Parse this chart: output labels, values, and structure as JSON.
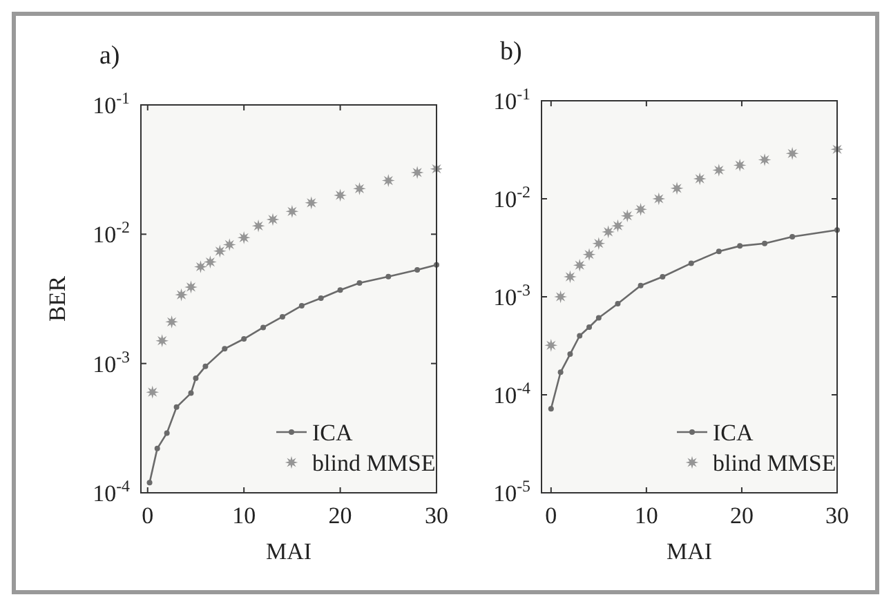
{
  "chart_data": [
    {
      "type": "line",
      "title": "a)",
      "xlabel": "MAI",
      "ylabel": "BER",
      "log": "y",
      "xlim": [
        -0.7,
        30
      ],
      "ylim": [
        0.0001,
        0.1
      ],
      "xticks": [
        0,
        10,
        20,
        30
      ],
      "yticks": [
        {
          "value": 0.0001,
          "label": "10$^{-4}$"
        },
        {
          "value": 0.001,
          "label": "10$^{-3}$"
        },
        {
          "value": 0.01,
          "label": "10$^{-2}$"
        },
        {
          "value": 0.1,
          "label": "10$^{-1}$"
        }
      ],
      "legend": "bottom right",
      "series": [
        {
          "name": "ICA",
          "marker": "circle",
          "color": "#6a6a6a",
          "x": [
            0.2,
            1,
            2,
            3,
            4.5,
            5,
            6,
            8,
            10,
            12,
            14,
            16,
            18,
            20,
            22,
            25,
            28,
            30
          ],
          "values": [
            0.00012,
            0.00022,
            0.00029,
            0.00046,
            0.00059,
            0.00077,
            0.00095,
            0.0013,
            0.00155,
            0.0019,
            0.0023,
            0.0028,
            0.0032,
            0.0037,
            0.0042,
            0.0047,
            0.0053,
            0.0058
          ]
        },
        {
          "name": "blind MMSE",
          "type": "scatter",
          "marker": "star",
          "color": "#959595",
          "x": [
            0.5,
            1.5,
            2.5,
            3.5,
            4.5,
            5.5,
            6.5,
            7.5,
            8.5,
            10,
            11.5,
            13,
            15,
            17,
            20,
            22,
            25,
            28,
            30
          ],
          "values": [
            0.0006,
            0.0015,
            0.0021,
            0.0034,
            0.0039,
            0.0056,
            0.0061,
            0.0074,
            0.0083,
            0.0094,
            0.0116,
            0.013,
            0.015,
            0.0175,
            0.02,
            0.0225,
            0.026,
            0.03,
            0.032
          ]
        }
      ]
    },
    {
      "type": "line",
      "title": "b)",
      "xlabel": "MAI",
      "log": "y",
      "xlim": [
        -1,
        30
      ],
      "ylim": [
        1e-05,
        0.1
      ],
      "xticks": [
        0,
        10,
        20,
        30
      ],
      "yticks": [
        {
          "value": 1e-05,
          "label": "10$^{-5}$"
        },
        {
          "value": 0.0001,
          "label": "10$^{-4}$"
        },
        {
          "value": 0.001,
          "label": "10$^{-3}$"
        },
        {
          "value": 0.01,
          "label": "10$^{-2}$"
        },
        {
          "value": 0.1,
          "label": "10$^{-1}$"
        }
      ],
      "legend": "bottom right",
      "series": [
        {
          "name": "ICA",
          "marker": "circle",
          "color": "#6a6a6a",
          "x": [
            0,
            1,
            2,
            3,
            4,
            5,
            7,
            9.4,
            11.7,
            14.7,
            17.6,
            19.8,
            22.4,
            25.3,
            30
          ],
          "values": [
            7.2e-05,
            0.00017,
            0.00026,
            0.0004,
            0.00049,
            0.00061,
            0.00085,
            0.0013,
            0.0016,
            0.0022,
            0.0029,
            0.0033,
            0.0035,
            0.0041,
            0.0048
          ]
        },
        {
          "name": "blind MMSE",
          "type": "scatter",
          "marker": "star",
          "color": "#959595",
          "x": [
            0,
            1,
            2,
            3,
            4,
            5,
            6,
            7,
            8,
            9.4,
            11.3,
            13.2,
            15.6,
            17.6,
            19.8,
            22.4,
            25.3,
            30
          ],
          "values": [
            0.00032,
            0.001,
            0.0016,
            0.0021,
            0.0027,
            0.0035,
            0.0046,
            0.0053,
            0.0067,
            0.0078,
            0.01,
            0.0128,
            0.016,
            0.0196,
            0.022,
            0.025,
            0.029,
            0.032
          ]
        }
      ]
    }
  ]
}
